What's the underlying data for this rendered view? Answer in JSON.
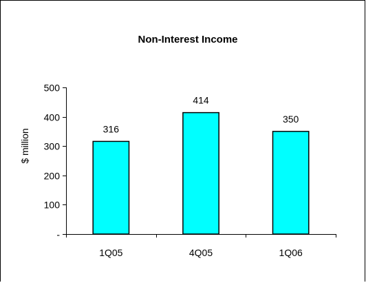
{
  "chart_data": {
    "type": "bar",
    "title": "Non-Interest Income",
    "ylabel": "$ million",
    "xlabel": "",
    "categories": [
      "1Q05",
      "4Q05",
      "1Q06"
    ],
    "values": [
      316,
      414,
      350
    ],
    "data_labels": [
      "316",
      "414",
      "350"
    ],
    "ylim": [
      0,
      500
    ],
    "yticks": [
      0,
      100,
      200,
      300,
      400,
      500
    ],
    "ytick_labels": [
      "-",
      "100",
      "200",
      "300",
      "400",
      "500"
    ],
    "grid": false,
    "legend": "none",
    "bar_color": "#00FFFF",
    "bar_edge_color": "#000000"
  }
}
